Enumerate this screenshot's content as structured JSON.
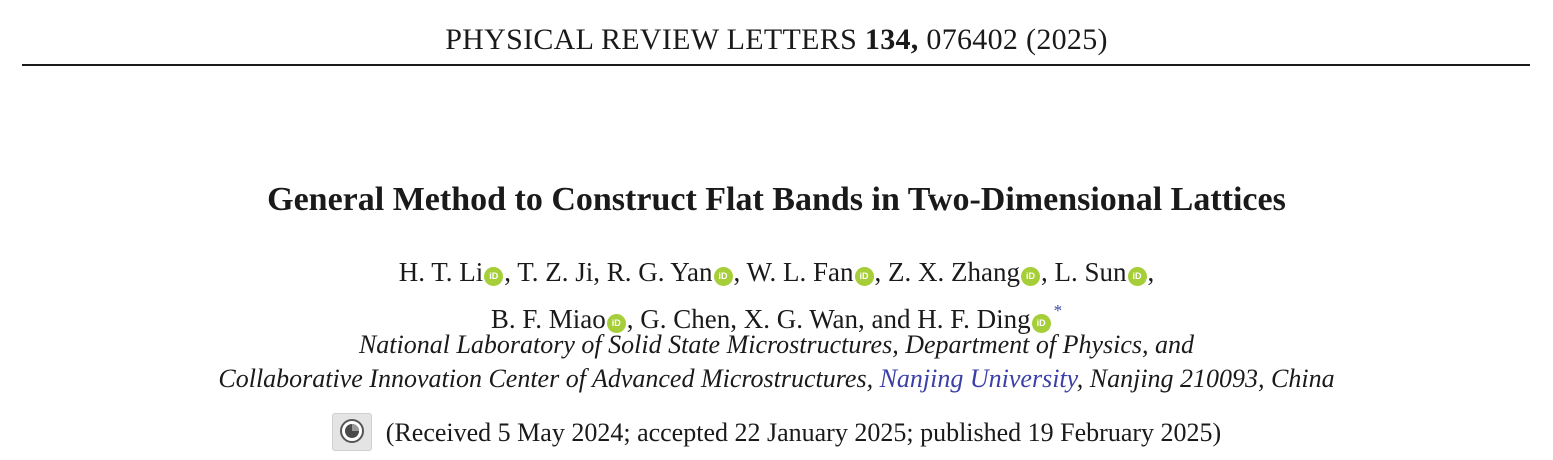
{
  "header": {
    "journal": "PHYSICAL REVIEW LETTERS",
    "volume": "134,",
    "article": "076402",
    "year": "(2025)"
  },
  "title": "General Method to Construct Flat Bands in Two-Dimensional Lattices",
  "authors": {
    "line1": [
      {
        "name": "H. T. Li",
        "orcid": true,
        "sep": ", "
      },
      {
        "name": "T. Z. Ji",
        "orcid": false,
        "sep": ", "
      },
      {
        "name": "R. G. Yan",
        "orcid": true,
        "sep": ", "
      },
      {
        "name": "W. L. Fan",
        "orcid": true,
        "sep": ", "
      },
      {
        "name": "Z. X. Zhang",
        "orcid": true,
        "sep": ", "
      },
      {
        "name": "L. Sun",
        "orcid": true,
        "sep": ","
      }
    ],
    "line2": [
      {
        "name": "B. F. Miao",
        "orcid": true,
        "sep": ", "
      },
      {
        "name": "G. Chen",
        "orcid": false,
        "sep": ", "
      },
      {
        "name": "X. G. Wan",
        "orcid": false,
        "sep": ", and "
      },
      {
        "name": "H. F. Ding",
        "orcid": true,
        "sep": ""
      }
    ],
    "corresponding_mark": "*",
    "orcid_label": "iD"
  },
  "affiliation": {
    "line1": "National Laboratory of Solid State Microstructures, Department of Physics, and",
    "line2_prefix": "Collaborative Innovation Center of Advanced Microstructures, ",
    "line2_link": "Nanjing University",
    "line2_suffix": ", Nanjing 210093, China"
  },
  "history": "(Received 5 May 2024; accepted 22 January 2025; published 19 February 2025)",
  "icons": {
    "orcid": "orcid-icon",
    "check_updates": "check-for-updates-icon"
  },
  "colors": {
    "orcid": "#a6ce39",
    "link": "#3b3fa6",
    "text": "#1a1a1a"
  }
}
